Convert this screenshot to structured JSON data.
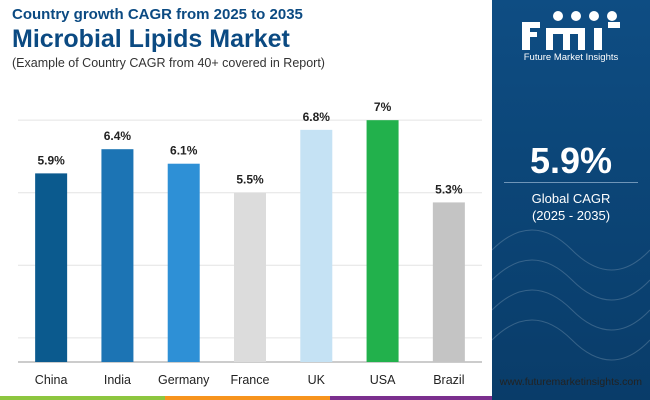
{
  "header": {
    "subtitle": "Country growth CAGR from 2025 to 2035",
    "title": "Microbial Lipids Market",
    "caption": "(Example of Country CAGR from 40+ covered in Report)"
  },
  "chart_data": {
    "type": "bar",
    "categories": [
      "China",
      "India",
      "Germany",
      "France",
      "UK",
      "USA",
      "Brazil"
    ],
    "values": [
      5.9,
      6.4,
      6.1,
      5.5,
      6.8,
      7.0,
      5.3
    ],
    "value_labels": [
      "5.9%",
      "6.4%",
      "6.1%",
      "5.5%",
      "6.8%",
      "7%",
      "5.3%"
    ],
    "colors": [
      "#0b5a8e",
      "#1c74b4",
      "#2e90d6",
      "#dcdcdc",
      "#c5e2f4",
      "#22b14c",
      "#c4c4c4"
    ],
    "ylim": [
      2.0,
      7.5
    ],
    "grid": true,
    "xlabel": "",
    "ylabel": ""
  },
  "side_panel": {
    "logo_text": "Future Market Insights",
    "global_cagr_value": "5.9%",
    "global_cagr_label": "Global CAGR",
    "global_cagr_range": "(2025 - 2035)"
  },
  "footer": {
    "website": "www.futuremarketinsights.com"
  },
  "colors": {
    "brand_blue": "#0b4a82",
    "panel_bg": "#0e4d83",
    "strip": [
      "#8dc63f",
      "#f7941d",
      "#7b2f8e",
      "#0b4a82"
    ]
  }
}
